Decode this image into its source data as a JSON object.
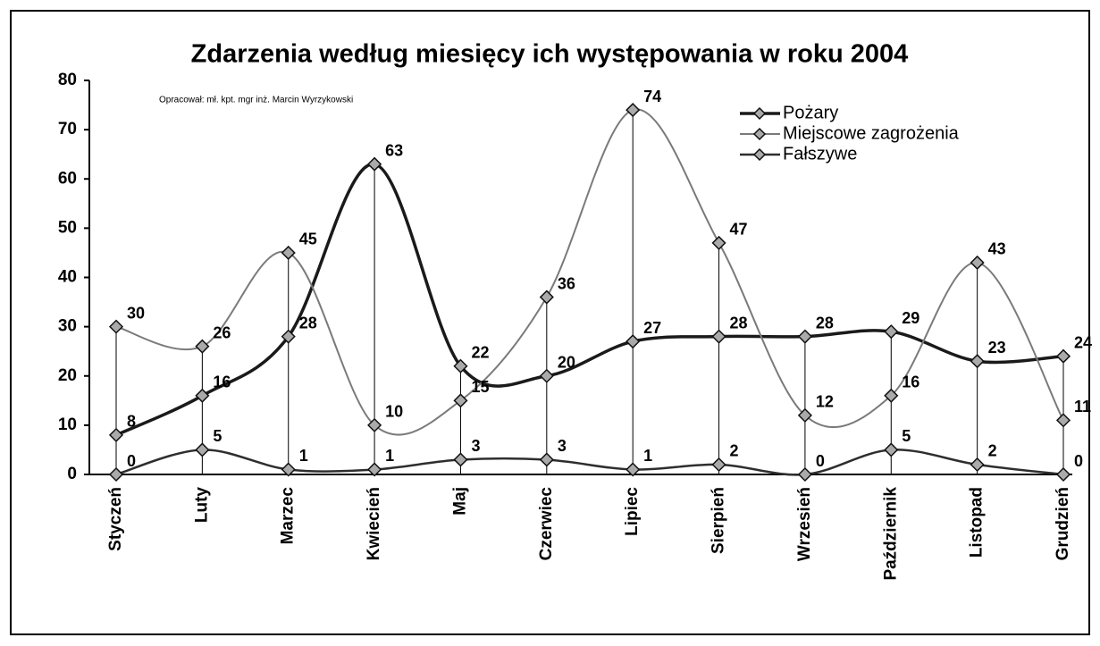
{
  "chart_data": {
    "type": "line",
    "title": "Zdarzenia według miesięcy ich występowania w roku 2004",
    "subtitle": "Opracował: mł. kpt. mgr inż. Marcin Wyrzykowski",
    "categories": [
      "Styczeń",
      "Luty",
      "Marzec",
      "Kwiecień",
      "Maj",
      "Czerwiec",
      "Lipiec",
      "Sierpień",
      "Wrzesień",
      "Październik",
      "Listopad",
      "Grudzień"
    ],
    "series": [
      {
        "name": "Pożary",
        "color": "#1a1a1a",
        "values": [
          8,
          16,
          28,
          63,
          22,
          20,
          27,
          28,
          28,
          29,
          23,
          24
        ]
      },
      {
        "name": "Miejscowe zagrożenia",
        "color": "#7a7a7a",
        "values": [
          30,
          26,
          45,
          10,
          15,
          36,
          74,
          47,
          12,
          16,
          43,
          11
        ]
      },
      {
        "name": "Fałszywe",
        "color": "#2e2e2e",
        "values": [
          0,
          5,
          1,
          1,
          3,
          3,
          1,
          2,
          0,
          5,
          2,
          0
        ]
      }
    ],
    "ylim": [
      0,
      80
    ],
    "yticks": [
      0,
      10,
      20,
      30,
      40,
      50,
      60,
      70,
      80
    ],
    "legend": "upper right"
  }
}
